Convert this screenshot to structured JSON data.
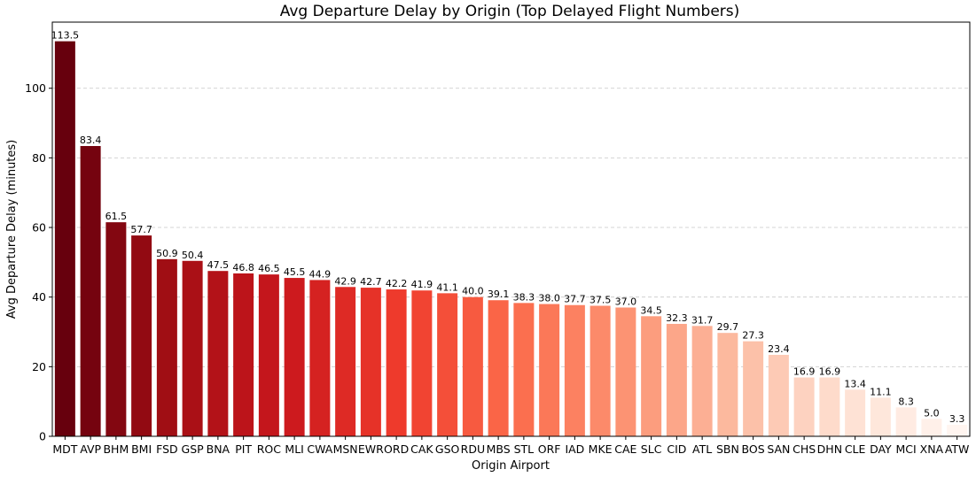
{
  "chart_data": {
    "type": "bar",
    "title": "Avg Departure Delay by Origin (Top Delayed Flight Numbers)",
    "xlabel": "Origin Airport",
    "ylabel": "Avg Departure Delay (minutes)",
    "ylim": [
      0,
      119
    ],
    "yticks": [
      0,
      20,
      40,
      60,
      80,
      100
    ],
    "grid": "y-dashed",
    "color_scale": "Reds (dark to light)",
    "colors": [
      "#67000d",
      "#fff5f0"
    ],
    "categories": [
      "MDT",
      "AVP",
      "BHM",
      "BMI",
      "FSD",
      "GSP",
      "BNA",
      "PIT",
      "ROC",
      "MLI",
      "CWA",
      "MSN",
      "EWR",
      "ORD",
      "CAK",
      "GSO",
      "RDU",
      "MBS",
      "STL",
      "ORF",
      "IAD",
      "MKE",
      "CAE",
      "SLC",
      "CID",
      "ATL",
      "SBN",
      "BOS",
      "SAN",
      "CHS",
      "DHN",
      "CLE",
      "DAY",
      "MCI",
      "XNA",
      "ATW"
    ],
    "values": [
      113.5,
      83.4,
      61.5,
      57.7,
      50.9,
      50.4,
      47.5,
      46.8,
      46.5,
      45.5,
      44.9,
      42.9,
      42.7,
      42.2,
      41.9,
      41.1,
      40.0,
      39.1,
      38.3,
      38.0,
      37.7,
      37.5,
      37.0,
      34.5,
      32.3,
      31.7,
      29.7,
      27.3,
      23.4,
      16.9,
      16.9,
      13.4,
      11.1,
      8.3,
      5.0,
      3.3
    ],
    "value_labels": [
      "113.5",
      "83.4",
      "61.5",
      "57.7",
      "50.9",
      "50.4",
      "47.5",
      "46.8",
      "46.5",
      "45.5",
      "44.9",
      "42.9",
      "42.7",
      "42.2",
      "41.9",
      "41.1",
      "40.0",
      "39.1",
      "38.3",
      "38.0",
      "37.7",
      "37.5",
      "37.0",
      "34.5",
      "32.3",
      "31.7",
      "29.7",
      "27.3",
      "23.4",
      "16.9",
      "16.9",
      "13.4",
      "11.1",
      "8.3",
      "5.0",
      "3.3"
    ]
  }
}
